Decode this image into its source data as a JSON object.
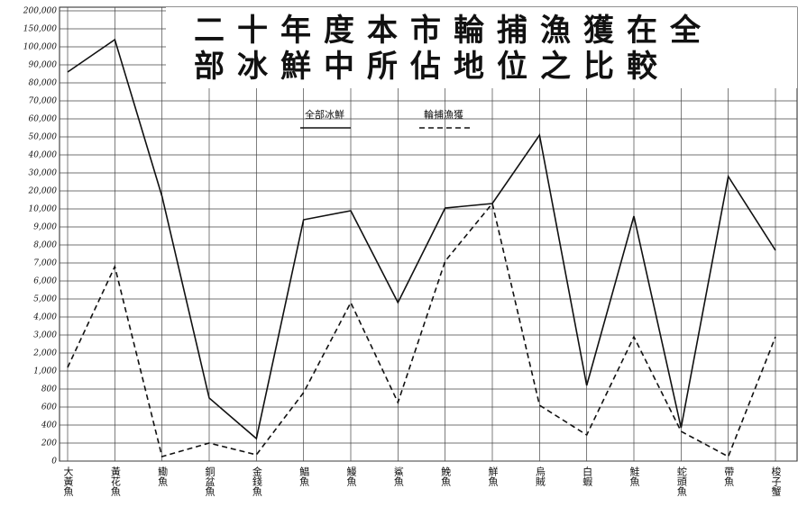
{
  "chart_data": {
    "type": "line",
    "title": [
      "二十年度本市輪捕漁獲在全",
      "部冰鮮中所佔地位之比較"
    ],
    "categories": [
      "大黃魚",
      "黃花魚",
      "鰳魚",
      "銅盆魚",
      "金錢魚",
      "鯧魚",
      "鰻魚",
      "鯊魚",
      "鮸魚",
      "鮮魚",
      "烏賊",
      "白蝦",
      "鮭魚",
      "蛇頭魚",
      "帶魚",
      "梭子蟹"
    ],
    "series": [
      {
        "name": "全部冰鮮",
        "color": "#111111",
        "style": "solid",
        "values": [
          86000,
          120000,
          17000,
          700,
          250,
          9400,
          9900,
          4800,
          10500,
          13000,
          51000,
          840,
          9600,
          370,
          28000,
          7700
        ]
      },
      {
        "name": "輪捕漁獲",
        "color": "#111111",
        "style": "dashed",
        "values": [
          1200,
          6800,
          50,
          200,
          70,
          760,
          4800,
          650,
          7100,
          13000,
          620,
          290,
          2900,
          330,
          50,
          2900
        ]
      }
    ],
    "ylim": [
      0,
      200000
    ],
    "yticks": [
      0,
      200,
      400,
      600,
      800,
      {
        "value": 1000,
        "label": "1,000"
      },
      {
        "value": 2000,
        "label": "2,000"
      },
      {
        "value": 3000,
        "label": "3,000"
      },
      {
        "value": 4000,
        "label": "4,000"
      },
      {
        "value": 5000,
        "label": "5,000"
      },
      {
        "value": 6000,
        "label": "6,000"
      },
      {
        "value": 7000,
        "label": "7,000"
      },
      {
        "value": 8000,
        "label": "8,000"
      },
      {
        "value": 9000,
        "label": "9,000"
      },
      {
        "value": 10000,
        "label": "10,000"
      },
      {
        "value": 20000,
        "label": "20,000"
      },
      {
        "value": 30000,
        "label": "30,000"
      },
      {
        "value": 40000,
        "label": "40,000"
      },
      {
        "value": 50000,
        "label": "50,000"
      },
      {
        "value": 60000,
        "label": "60,000"
      },
      {
        "value": 70000,
        "label": "70,000"
      },
      {
        "value": 80000,
        "label": "80,000"
      },
      {
        "value": 90000,
        "label": "90,000"
      },
      {
        "value": 100000,
        "label": "100,000"
      },
      {
        "value": 150000,
        "label": "150,000"
      },
      {
        "value": 200000,
        "label": "200,000"
      }
    ],
    "grid": true
  }
}
